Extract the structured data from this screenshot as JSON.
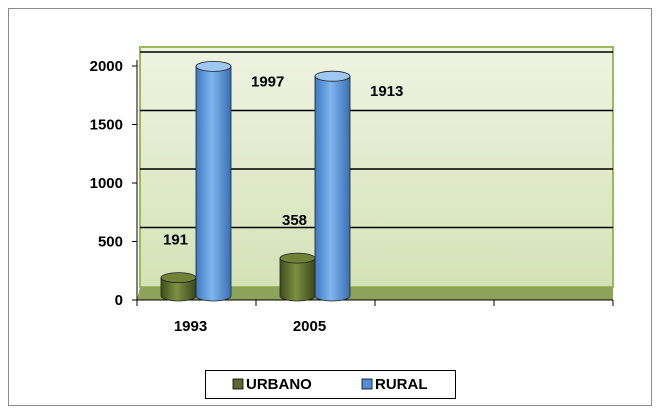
{
  "chart_data": {
    "type": "bar",
    "categories": [
      "1993",
      "2005",
      null,
      null
    ],
    "series": [
      {
        "name": "URBANO",
        "color": "#5a6b2c",
        "values": [
          191,
          358,
          null,
          null
        ]
      },
      {
        "name": "RURAL",
        "color": "#4f8fd6",
        "values": [
          1997,
          1913,
          null,
          null
        ]
      }
    ],
    "ylim": [
      0,
      2000
    ],
    "yticks": [
      0,
      500,
      1000,
      1500,
      2000
    ],
    "grid": true,
    "legend": "bottom"
  }
}
